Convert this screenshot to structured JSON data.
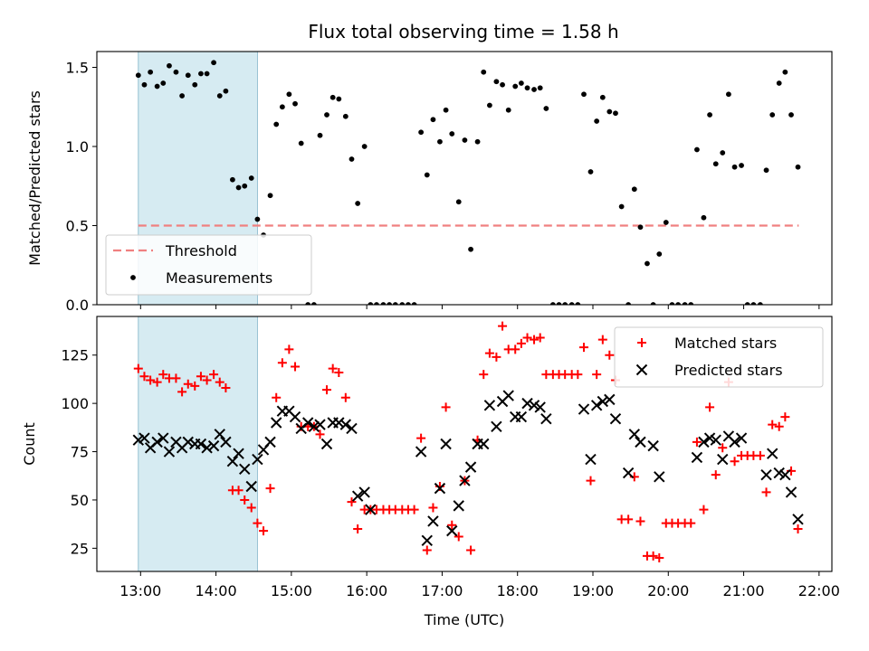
{
  "title": "Flux total observing time = 1.58 h",
  "chart_data": [
    {
      "type": "scatter",
      "panel": "top",
      "ylabel": "Matched/Predicted stars",
      "xlabel": "",
      "x_unit": "hours UTC",
      "xlim": [
        12.42,
        22.17
      ],
      "ylim": [
        0,
        1.6
      ],
      "yticks": [
        0.0,
        0.5,
        1.0,
        1.5
      ],
      "ytick_labels": [
        "0.0",
        "0.5",
        "1.0",
        "1.5"
      ],
      "shaded_span": [
        12.97,
        14.55
      ],
      "legend": {
        "placement": "lower-left",
        "entries": [
          "Threshold",
          "Measurements"
        ]
      },
      "series": [
        {
          "name": "Threshold",
          "kind": "dashed-line",
          "color": "#f08080",
          "x": [
            12.97,
            21.73
          ],
          "y": [
            0.5,
            0.5
          ]
        },
        {
          "name": "Measurements",
          "kind": "dot",
          "color": "#000000",
          "x": [
            12.97,
            13.05,
            13.13,
            13.22,
            13.3,
            13.38,
            13.47,
            13.55,
            13.63,
            13.72,
            13.8,
            13.88,
            13.97,
            14.05,
            14.13,
            14.22,
            14.3,
            14.38,
            14.47,
            14.55,
            14.63,
            14.72,
            14.8,
            14.88,
            14.97,
            15.05,
            15.13,
            15.22,
            15.3,
            15.38,
            15.47,
            15.55,
            15.63,
            15.72,
            15.8,
            15.88,
            15.97,
            16.05,
            16.13,
            16.22,
            16.3,
            16.38,
            16.47,
            16.55,
            16.63,
            16.72,
            16.8,
            16.88,
            16.97,
            17.05,
            17.13,
            17.22,
            17.3,
            17.38,
            17.47,
            17.55,
            17.63,
            17.72,
            17.8,
            17.88,
            17.97,
            18.05,
            18.13,
            18.22,
            18.3,
            18.38,
            18.47,
            18.55,
            18.63,
            18.72,
            18.8,
            18.88,
            18.97,
            19.05,
            19.13,
            19.22,
            19.3,
            19.38,
            19.47,
            19.55,
            19.63,
            19.72,
            19.8,
            19.88,
            19.97,
            20.05,
            20.13,
            20.22,
            20.3,
            20.38,
            20.47,
            20.55,
            20.63,
            20.72,
            20.8,
            20.88,
            20.97,
            21.05,
            21.13,
            21.22,
            21.3,
            21.38,
            21.47,
            21.55,
            21.63,
            21.72
          ],
          "y": [
            1.45,
            1.39,
            1.47,
            1.38,
            1.4,
            1.51,
            1.47,
            1.32,
            1.45,
            1.39,
            1.46,
            1.46,
            1.53,
            1.32,
            1.35,
            0.79,
            0.74,
            0.75,
            0.8,
            0.54,
            0.44,
            0.69,
            1.14,
            1.25,
            1.33,
            1.27,
            1.02,
            0.0,
            0.0,
            1.07,
            1.2,
            1.31,
            1.3,
            1.19,
            0.92,
            0.64,
            1.0,
            0.0,
            0.0,
            0.0,
            0.0,
            0.0,
            0.0,
            0.0,
            0.0,
            1.09,
            0.82,
            1.17,
            1.03,
            1.23,
            1.08,
            0.65,
            1.04,
            0.35,
            1.03,
            1.47,
            1.26,
            1.41,
            1.39,
            1.23,
            1.38,
            1.4,
            1.37,
            1.36,
            1.37,
            1.24,
            0.0,
            0.0,
            0.0,
            0.0,
            0.0,
            1.33,
            0.84,
            1.16,
            1.31,
            1.22,
            1.21,
            0.62,
            0.0,
            0.73,
            0.49,
            0.26,
            0.0,
            0.32,
            0.52,
            0.0,
            0.0,
            0.0,
            0.0,
            0.98,
            0.55,
            1.2,
            0.89,
            0.96,
            1.33,
            0.87,
            0.88,
            0.0,
            0.0,
            0.0,
            0.85,
            1.2,
            1.4,
            1.47,
            1.2,
            0.87
          ]
        }
      ]
    },
    {
      "type": "scatter",
      "panel": "bottom",
      "ylabel": "Count",
      "xlabel": "Time (UTC)",
      "x_unit": "hours UTC",
      "xlim": [
        12.42,
        22.17
      ],
      "ylim": [
        13,
        145
      ],
      "yticks": [
        25,
        50,
        75,
        100,
        125
      ],
      "ytick_labels": [
        "25",
        "50",
        "75",
        "100",
        "125"
      ],
      "xticks": [
        13,
        14,
        15,
        16,
        17,
        18,
        19,
        20,
        21,
        22
      ],
      "xtick_labels": [
        "13:00",
        "14:00",
        "15:00",
        "16:00",
        "17:00",
        "18:00",
        "19:00",
        "20:00",
        "21:00",
        "22:00"
      ],
      "shaded_span": [
        12.97,
        14.55
      ],
      "legend": {
        "placement": "upper-right",
        "entries": [
          "Matched stars",
          "Predicted stars"
        ]
      },
      "series": [
        {
          "name": "Matched stars",
          "kind": "plus",
          "color": "#ff0000",
          "x": [
            12.97,
            13.05,
            13.13,
            13.22,
            13.3,
            13.38,
            13.47,
            13.55,
            13.63,
            13.72,
            13.8,
            13.88,
            13.97,
            14.05,
            14.13,
            14.22,
            14.3,
            14.38,
            14.47,
            14.55,
            14.63,
            14.72,
            14.8,
            14.88,
            14.97,
            15.05,
            15.13,
            15.22,
            15.3,
            15.38,
            15.47,
            15.55,
            15.63,
            15.72,
            15.8,
            15.88,
            15.97,
            16.05,
            16.13,
            16.22,
            16.3,
            16.38,
            16.47,
            16.55,
            16.63,
            16.72,
            16.8,
            16.88,
            16.97,
            17.05,
            17.13,
            17.22,
            17.3,
            17.38,
            17.47,
            17.55,
            17.63,
            17.72,
            17.8,
            17.88,
            17.97,
            18.05,
            18.13,
            18.22,
            18.3,
            18.38,
            18.47,
            18.55,
            18.63,
            18.72,
            18.8,
            18.88,
            18.97,
            19.05,
            19.13,
            19.22,
            19.3,
            19.38,
            19.47,
            19.55,
            19.63,
            19.72,
            19.8,
            19.88,
            19.97,
            20.05,
            20.13,
            20.22,
            20.3,
            20.38,
            20.47,
            20.55,
            20.63,
            20.72,
            20.8,
            20.88,
            20.97,
            21.05,
            21.13,
            21.22,
            21.3,
            21.38,
            21.47,
            21.55,
            21.63,
            21.72
          ],
          "y": [
            118,
            114,
            112,
            111,
            115,
            113,
            113,
            106,
            110,
            109,
            114,
            112,
            115,
            111,
            108,
            55,
            55,
            50,
            46,
            38,
            34,
            56,
            103,
            121,
            128,
            119,
            88,
            88,
            88,
            84,
            107,
            118,
            116,
            103,
            49,
            35,
            45,
            45,
            45,
            45,
            45,
            45,
            45,
            45,
            45,
            82,
            24,
            46,
            57,
            98,
            37,
            31,
            60,
            24,
            81,
            115,
            126,
            124,
            140,
            128,
            128,
            131,
            134,
            133,
            134,
            115,
            115,
            115,
            115,
            115,
            115,
            129,
            60,
            115,
            133,
            125,
            112,
            40,
            40,
            62,
            39,
            21,
            21,
            20,
            38,
            38,
            38,
            38,
            38,
            80,
            45,
            98,
            63,
            77,
            111,
            70,
            73,
            73,
            73,
            73,
            54,
            89,
            88,
            93,
            65,
            35
          ]
        },
        {
          "name": "Predicted stars",
          "kind": "x",
          "color": "#000000",
          "x": [
            12.97,
            13.05,
            13.13,
            13.22,
            13.3,
            13.38,
            13.47,
            13.55,
            13.63,
            13.72,
            13.8,
            13.88,
            13.97,
            14.05,
            14.13,
            14.22,
            14.3,
            14.38,
            14.47,
            14.55,
            14.63,
            14.72,
            14.8,
            14.88,
            14.97,
            15.05,
            15.13,
            15.22,
            15.3,
            15.38,
            15.47,
            15.55,
            15.63,
            15.72,
            15.8,
            15.88,
            15.97,
            16.05,
            16.72,
            16.8,
            16.88,
            16.97,
            17.05,
            17.13,
            17.22,
            17.3,
            17.38,
            17.47,
            17.55,
            17.63,
            17.72,
            17.8,
            17.88,
            17.97,
            18.05,
            18.13,
            18.22,
            18.3,
            18.38,
            18.88,
            18.97,
            19.05,
            19.13,
            19.22,
            19.3,
            19.47,
            19.55,
            19.63,
            19.8,
            19.88,
            20.38,
            20.47,
            20.55,
            20.63,
            20.72,
            20.8,
            20.88,
            20.97,
            21.3,
            21.38,
            21.47,
            21.55,
            21.63,
            21.72
          ],
          "y": [
            81,
            82,
            77,
            80,
            82,
            75,
            80,
            77,
            80,
            79,
            79,
            77,
            78,
            84,
            80,
            70,
            74,
            66,
            57,
            71,
            76,
            80,
            90,
            96,
            96,
            93,
            87,
            90,
            88,
            89,
            79,
            90,
            90,
            89,
            87,
            52,
            54,
            45,
            75,
            29,
            39,
            56,
            79,
            34,
            47,
            60,
            67,
            79,
            79,
            99,
            88,
            101,
            104,
            93,
            93,
            100,
            99,
            98,
            92,
            97,
            71,
            99,
            101,
            102,
            92,
            64,
            84,
            80,
            78,
            62,
            72,
            80,
            82,
            81,
            71,
            83,
            80,
            82,
            63,
            74,
            64,
            63,
            54,
            40
          ]
        }
      ]
    }
  ]
}
